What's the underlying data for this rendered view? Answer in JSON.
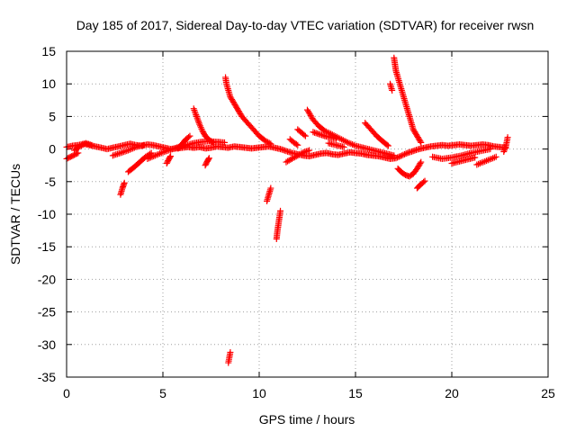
{
  "colors": {
    "series": "#ff0000",
    "axis": "#000000",
    "grid": "#a0a0a0"
  },
  "chart_data": {
    "type": "scatter",
    "title": "Day 185 of 2017, Sidereal Day-to-day VTEC variation (SDTVAR) for receiver rwsn",
    "xlabel": "GPS time / hours",
    "ylabel": "SDTVAR / TECUs",
    "xlim": [
      0,
      25
    ],
    "ylim": [
      -35,
      15
    ],
    "xticks": [
      0,
      5,
      10,
      15,
      20,
      25
    ],
    "yticks": [
      -35,
      -30,
      -25,
      -20,
      -15,
      -10,
      -5,
      0,
      5,
      10,
      15
    ],
    "grid": true,
    "marker": "+",
    "series": [
      {
        "name": "SDTVAR",
        "tracks": [
          [
            [
              0.0,
              0.3
            ],
            [
              0.3,
              0.5
            ],
            [
              0.6,
              0.6
            ],
            [
              0.9,
              0.8
            ],
            [
              1.2,
              0.6
            ],
            [
              1.5,
              0.4
            ],
            [
              1.8,
              0.2
            ],
            [
              2.1,
              0.0
            ],
            [
              2.4,
              0.2
            ],
            [
              2.7,
              0.4
            ],
            [
              3.0,
              0.6
            ],
            [
              3.3,
              0.8
            ],
            [
              3.6,
              0.6
            ],
            [
              3.9,
              0.5
            ],
            [
              4.2,
              0.7
            ],
            [
              4.5,
              0.6
            ],
            [
              4.8,
              0.4
            ],
            [
              5.1,
              0.2
            ],
            [
              5.4,
              0.0
            ],
            [
              5.7,
              0.1
            ],
            [
              6.0,
              0.2
            ],
            [
              6.3,
              0.3
            ],
            [
              6.6,
              0.2
            ],
            [
              6.9,
              0.3
            ],
            [
              7.2,
              0.1
            ],
            [
              7.5,
              0.2
            ],
            [
              7.8,
              0.4
            ],
            [
              8.1,
              0.3
            ],
            [
              8.4,
              0.2
            ],
            [
              8.7,
              0.4
            ],
            [
              9.0,
              0.3
            ],
            [
              9.3,
              0.2
            ],
            [
              9.6,
              0.1
            ],
            [
              9.9,
              0.2
            ],
            [
              10.2,
              0.3
            ],
            [
              10.5,
              0.4
            ],
            [
              10.8,
              0.2
            ],
            [
              11.1,
              0.0
            ],
            [
              11.4,
              -0.3
            ],
            [
              11.7,
              -0.6
            ],
            [
              12.0,
              -0.8
            ],
            [
              12.3,
              -1.0
            ],
            [
              12.6,
              -1.1
            ],
            [
              12.9,
              -0.9
            ],
            [
              13.2,
              -0.7
            ],
            [
              13.5,
              -0.6
            ],
            [
              13.8,
              -0.8
            ],
            [
              14.1,
              -0.9
            ],
            [
              14.4,
              -0.7
            ],
            [
              14.7,
              -0.5
            ],
            [
              15.0,
              -0.6
            ],
            [
              15.3,
              -0.7
            ],
            [
              15.6,
              -0.9
            ],
            [
              15.9,
              -1.0
            ],
            [
              16.2,
              -1.1
            ],
            [
              16.5,
              -1.3
            ],
            [
              16.8,
              -1.5
            ],
            [
              17.1,
              -1.4
            ],
            [
              17.4,
              -1.0
            ],
            [
              17.7,
              -0.6
            ],
            [
              18.0,
              -0.3
            ],
            [
              18.3,
              0.0
            ],
            [
              18.6,
              0.2
            ],
            [
              18.9,
              0.4
            ],
            [
              19.2,
              0.5
            ],
            [
              19.5,
              0.6
            ],
            [
              19.8,
              0.5
            ],
            [
              20.1,
              0.6
            ],
            [
              20.4,
              0.7
            ],
            [
              20.7,
              0.6
            ],
            [
              21.0,
              0.5
            ],
            [
              21.3,
              0.6
            ],
            [
              21.6,
              0.7
            ],
            [
              21.9,
              0.6
            ],
            [
              22.2,
              0.4
            ],
            [
              22.5,
              0.3
            ],
            [
              22.8,
              0.2
            ]
          ],
          [
            [
              0.0,
              -1.5
            ],
            [
              0.2,
              -1.2
            ],
            [
              0.4,
              -0.9
            ],
            [
              0.6,
              -0.6
            ]
          ],
          [
            [
              0.4,
              -0.2
            ],
            [
              0.7,
              0.4
            ],
            [
              1.0,
              0.9
            ],
            [
              1.3,
              0.6
            ]
          ],
          [
            [
              2.4,
              -1.0
            ],
            [
              2.8,
              -0.6
            ],
            [
              3.2,
              -0.2
            ],
            [
              3.6,
              0.3
            ],
            [
              4.0,
              0.6
            ]
          ],
          [
            [
              2.8,
              -7.0
            ],
            [
              2.85,
              -6.5
            ],
            [
              2.9,
              -6.0
            ],
            [
              2.95,
              -5.6
            ],
            [
              3.0,
              -5.2
            ]
          ],
          [
            [
              3.2,
              -3.5
            ],
            [
              3.5,
              -2.8
            ],
            [
              3.8,
              -2.0
            ],
            [
              4.1,
              -1.2
            ],
            [
              4.4,
              -0.6
            ]
          ],
          [
            [
              4.2,
              -1.5
            ],
            [
              4.6,
              -1.0
            ],
            [
              5.0,
              -0.5
            ],
            [
              5.4,
              -0.1
            ],
            [
              5.8,
              0.3
            ],
            [
              6.2,
              0.6
            ],
            [
              6.6,
              0.9
            ],
            [
              7.0,
              1.1
            ],
            [
              7.4,
              1.2
            ],
            [
              7.8,
              1.1
            ],
            [
              8.2,
              1.0
            ]
          ],
          [
            [
              5.2,
              -2.2
            ],
            [
              5.3,
              -1.6
            ],
            [
              5.4,
              -1.1
            ]
          ],
          [
            [
              5.8,
              0.1
            ],
            [
              6.0,
              0.8
            ],
            [
              6.2,
              1.5
            ],
            [
              6.4,
              2.0
            ]
          ],
          [
            [
              6.6,
              6.2
            ],
            [
              6.75,
              5.0
            ],
            [
              6.9,
              3.8
            ],
            [
              7.05,
              2.8
            ],
            [
              7.2,
              2.0
            ],
            [
              7.4,
              1.4
            ],
            [
              7.6,
              1.0
            ]
          ],
          [
            [
              7.2,
              -2.5
            ],
            [
              7.3,
              -1.9
            ],
            [
              7.4,
              -1.4
            ]
          ],
          [
            [
              8.25,
              11.0
            ],
            [
              8.3,
              10.0
            ],
            [
              8.4,
              9.0
            ],
            [
              8.5,
              8.0
            ],
            [
              8.7,
              7.0
            ],
            [
              8.9,
              6.0
            ],
            [
              9.1,
              5.0
            ],
            [
              9.4,
              4.0
            ],
            [
              9.7,
              3.0
            ],
            [
              10.0,
              2.0
            ],
            [
              10.3,
              1.3
            ],
            [
              10.6,
              0.8
            ]
          ],
          [
            [
              8.4,
              -32.8
            ],
            [
              8.45,
              -32.0
            ],
            [
              8.5,
              -31.2
            ]
          ],
          [
            [
              10.4,
              -8.0
            ],
            [
              10.5,
              -7.0
            ],
            [
              10.6,
              -6.0
            ]
          ],
          [
            [
              10.9,
              -13.8
            ],
            [
              10.95,
              -12.5
            ],
            [
              11.0,
              -11.5
            ],
            [
              11.05,
              -10.5
            ],
            [
              11.1,
              -9.5
            ]
          ],
          [
            [
              11.4,
              -2.0
            ],
            [
              11.7,
              -1.5
            ],
            [
              12.0,
              -1.0
            ],
            [
              12.3,
              -0.5
            ],
            [
              12.6,
              -0.2
            ]
          ],
          [
            [
              11.6,
              1.5
            ],
            [
              11.8,
              1.0
            ],
            [
              12.0,
              0.6
            ]
          ],
          [
            [
              12.0,
              3.0
            ],
            [
              12.2,
              2.5
            ],
            [
              12.4,
              2.0
            ]
          ],
          [
            [
              12.5,
              6.0
            ],
            [
              12.8,
              4.5
            ],
            [
              13.1,
              3.5
            ],
            [
              13.4,
              2.8
            ],
            [
              13.8,
              2.2
            ],
            [
              14.2,
              1.6
            ],
            [
              14.6,
              1.0
            ],
            [
              15.0,
              0.5
            ],
            [
              15.4,
              0.2
            ],
            [
              15.8,
              -0.1
            ],
            [
              16.2,
              -0.4
            ],
            [
              16.6,
              -0.7
            ],
            [
              17.0,
              -1.0
            ]
          ],
          [
            [
              12.8,
              2.6
            ],
            [
              13.1,
              2.3
            ],
            [
              13.4,
              2.0
            ],
            [
              13.7,
              1.8
            ],
            [
              14.0,
              1.6
            ]
          ],
          [
            [
              13.6,
              0.9
            ],
            [
              14.0,
              0.6
            ],
            [
              14.4,
              0.3
            ]
          ],
          [
            [
              15.5,
              4.0
            ],
            [
              15.8,
              3.0
            ],
            [
              16.1,
              2.0
            ],
            [
              16.4,
              1.2
            ],
            [
              16.7,
              0.5
            ]
          ],
          [
            [
              16.8,
              10.0
            ],
            [
              16.9,
              9.0
            ]
          ],
          [
            [
              17.0,
              14.0
            ],
            [
              17.05,
              13.0
            ],
            [
              17.1,
              12.0
            ],
            [
              17.2,
              11.0
            ],
            [
              17.3,
              10.0
            ],
            [
              17.4,
              9.0
            ],
            [
              17.5,
              8.0
            ],
            [
              17.6,
              7.0
            ],
            [
              17.7,
              6.0
            ],
            [
              17.8,
              5.0
            ],
            [
              17.9,
              4.0
            ],
            [
              18.0,
              3.0
            ],
            [
              18.2,
              2.0
            ],
            [
              18.4,
              1.0
            ]
          ],
          [
            [
              17.2,
              -3.0
            ],
            [
              17.4,
              -3.6
            ],
            [
              17.6,
              -4.0
            ],
            [
              17.8,
              -4.2
            ],
            [
              18.0,
              -3.8
            ],
            [
              18.2,
              -3.0
            ],
            [
              18.4,
              -2.0
            ]
          ],
          [
            [
              18.2,
              -6.0
            ],
            [
              18.4,
              -5.4
            ],
            [
              18.6,
              -4.9
            ]
          ],
          [
            [
              19.0,
              -1.2
            ],
            [
              19.5,
              -1.5
            ],
            [
              20.0,
              -1.3
            ],
            [
              20.5,
              -1.0
            ],
            [
              21.0,
              -0.6
            ],
            [
              21.5,
              -0.3
            ],
            [
              22.0,
              0.0
            ]
          ],
          [
            [
              20.0,
              -2.2
            ],
            [
              20.4,
              -1.9
            ],
            [
              20.8,
              -1.6
            ],
            [
              21.2,
              -1.3
            ]
          ],
          [
            [
              21.3,
              -2.4
            ],
            [
              21.8,
              -1.8
            ],
            [
              22.3,
              -1.2
            ]
          ],
          [
            [
              22.7,
              -0.4
            ],
            [
              22.8,
              0.3
            ],
            [
              22.85,
              1.0
            ],
            [
              22.9,
              1.8
            ]
          ]
        ]
      }
    ]
  }
}
